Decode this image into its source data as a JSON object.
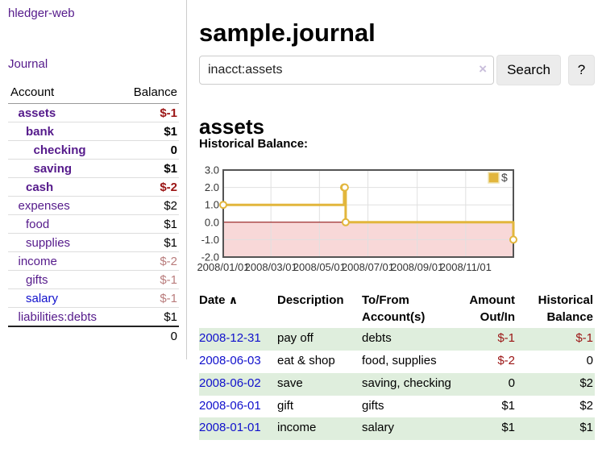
{
  "app": {
    "name": "hledger-web",
    "nav_journal": "Journal"
  },
  "sidebar": {
    "account_header": "Account",
    "balance_header": "Balance",
    "accounts": [
      {
        "name": "assets",
        "level": 1,
        "bold": true,
        "name_color": "purple",
        "balance": "$-1",
        "balance_color": "neg-strong",
        "balance_bold": true
      },
      {
        "name": "bank",
        "level": 2,
        "bold": true,
        "name_color": "purple",
        "balance": "$1",
        "balance_color": "black",
        "balance_bold": true
      },
      {
        "name": "checking",
        "level": 3,
        "bold": true,
        "name_color": "purple",
        "balance": "0",
        "balance_color": "black",
        "balance_bold": true
      },
      {
        "name": "saving",
        "level": 3,
        "bold": true,
        "name_color": "purple",
        "balance": "$1",
        "balance_color": "black",
        "balance_bold": true
      },
      {
        "name": "cash",
        "level": 2,
        "bold": true,
        "name_color": "purple",
        "balance": "$-2",
        "balance_color": "neg-strong",
        "balance_bold": true
      },
      {
        "name": "expenses",
        "level": 1,
        "bold": false,
        "name_color": "purple",
        "balance": "$2",
        "balance_color": "black",
        "balance_bold": false
      },
      {
        "name": "food",
        "level": 2,
        "bold": false,
        "name_color": "purple",
        "balance": "$1",
        "balance_color": "black",
        "balance_bold": false
      },
      {
        "name": "supplies",
        "level": 2,
        "bold": false,
        "name_color": "purple",
        "balance": "$1",
        "balance_color": "black",
        "balance_bold": false
      },
      {
        "name": "income",
        "level": 1,
        "bold": false,
        "name_color": "purple",
        "balance": "$-2",
        "balance_color": "neg-soft",
        "balance_bold": false
      },
      {
        "name": "gifts",
        "level": 2,
        "bold": false,
        "name_color": "purple",
        "balance": "$-1",
        "balance_color": "neg-soft",
        "balance_bold": false
      },
      {
        "name": "salary",
        "level": 2,
        "bold": false,
        "name_color": "blue",
        "balance": "$-1",
        "balance_color": "neg-soft",
        "balance_bold": false
      },
      {
        "name": "liabilities:debts",
        "level": 1,
        "bold": false,
        "name_color": "purple",
        "balance": "$1",
        "balance_color": "black",
        "balance_bold": false
      }
    ],
    "total": "0"
  },
  "main": {
    "title": "sample.journal",
    "account_heading": "assets",
    "chart_label": "Historical Balance:"
  },
  "search": {
    "query": "inacct:assets",
    "clear_icon": "×",
    "button": "Search",
    "help_button": "?"
  },
  "chart_data": {
    "type": "line",
    "title": "Historical Balance",
    "step": true,
    "x_range": [
      "2008-01-01",
      "2008-12-31"
    ],
    "ylim": [
      -2,
      3
    ],
    "y_ticks": [
      {
        "value": 3,
        "label": "3.0"
      },
      {
        "value": 2,
        "label": "2.0"
      },
      {
        "value": 1,
        "label": "1.0"
      },
      {
        "value": 0,
        "label": "0.0"
      },
      {
        "value": -1,
        "label": "-1.0"
      },
      {
        "value": -2,
        "label": "-2.0"
      }
    ],
    "x_ticks": [
      {
        "date": "2008-01-01",
        "label": "2008/01/01"
      },
      {
        "date": "2008-03-01",
        "label": "2008/03/01"
      },
      {
        "date": "2008-05-01",
        "label": "2008/05/01"
      },
      {
        "date": "2008-07-01",
        "label": "2008/07/01"
      },
      {
        "date": "2008-09-01",
        "label": "2008/09/01"
      },
      {
        "date": "2008-11-01",
        "label": "2008/11/01"
      }
    ],
    "series": [
      {
        "name": "$",
        "color": "#e2b63c",
        "points": [
          {
            "x": "2008-01-01",
            "y": 1
          },
          {
            "x": "2008-06-01",
            "y": 2
          },
          {
            "x": "2008-06-02",
            "y": 2
          },
          {
            "x": "2008-06-03",
            "y": 0
          },
          {
            "x": "2008-12-31",
            "y": -1
          }
        ]
      }
    ],
    "legend": {
      "label": "$",
      "position": "top-right"
    },
    "grid": true,
    "negative_region_color": "#f8d8d8",
    "zero_line_color": "#8b0000",
    "border_color": "#545454",
    "grid_color": "#e0e0e0"
  },
  "register": {
    "headers": {
      "date": "Date",
      "sort_icon": "∧",
      "description": "Description",
      "accounts": "To/From Account(s)",
      "amount": "Amount Out/In",
      "balance": "Historical Balance"
    },
    "rows": [
      {
        "date": "2008-12-31",
        "description": "pay off",
        "accounts": "debts",
        "amount": "$-1",
        "amount_neg": true,
        "balance": "$-1",
        "balance_neg": true,
        "green": true
      },
      {
        "date": "2008-06-03",
        "description": "eat & shop",
        "accounts": "food, supplies",
        "amount": "$-2",
        "amount_neg": true,
        "balance": "0",
        "balance_neg": false,
        "green": false
      },
      {
        "date": "2008-06-02",
        "description": "save",
        "accounts": "saving, checking",
        "amount": "0",
        "amount_neg": false,
        "balance": "$2",
        "balance_neg": false,
        "green": true
      },
      {
        "date": "2008-06-01",
        "description": "gift",
        "accounts": "gifts",
        "amount": "$1",
        "amount_neg": false,
        "balance": "$2",
        "balance_neg": false,
        "green": false
      },
      {
        "date": "2008-01-01",
        "description": "income",
        "accounts": "salary",
        "amount": "$1",
        "amount_neg": false,
        "balance": "$1",
        "balance_neg": false,
        "green": true
      }
    ]
  }
}
